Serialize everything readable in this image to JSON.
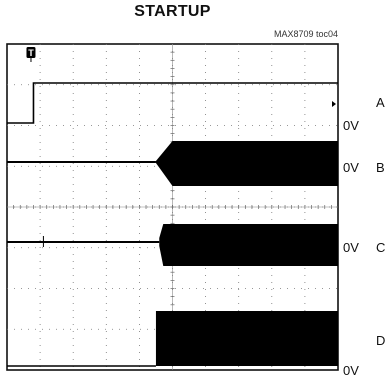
{
  "title": "STARTUP",
  "figure_tag": "MAX8709 toc04",
  "chart_data": {
    "type": "line",
    "title": "STARTUP",
    "xlabel": "",
    "ylabel": "",
    "grid": true,
    "divisions": {
      "x": 10,
      "y": 8
    },
    "trigger_marker": "T",
    "series": [
      {
        "name": "A",
        "zero_label": "0V",
        "start": 0.08,
        "points": [
          [
            0,
            0
          ],
          [
            0.08,
            0
          ],
          [
            0.08,
            1
          ],
          [
            1,
            1
          ]
        ]
      },
      {
        "name": "B",
        "zero_label": "0V",
        "start": 0.45,
        "points": [
          [
            0,
            0
          ],
          [
            0.45,
            0
          ],
          [
            0.47,
            0.35
          ],
          [
            0.5,
            0.8
          ],
          [
            1,
            1
          ]
        ]
      },
      {
        "name": "C",
        "zero_label": "0V",
        "start": 0.46,
        "points": [
          [
            0,
            0
          ],
          [
            0.46,
            0
          ],
          [
            0.47,
            0.9
          ],
          [
            1,
            1
          ]
        ]
      },
      {
        "name": "D",
        "zero_label": "0V",
        "start": 0.45,
        "points": [
          [
            0,
            0
          ],
          [
            0.45,
            0
          ],
          [
            0.45,
            1
          ],
          [
            1,
            1
          ]
        ]
      }
    ]
  }
}
